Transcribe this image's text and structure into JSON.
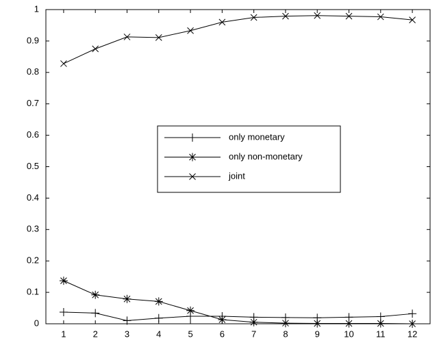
{
  "chart_data": {
    "type": "line",
    "x": [
      1,
      2,
      3,
      4,
      5,
      6,
      7,
      8,
      9,
      10,
      11,
      12
    ],
    "series": [
      {
        "name": "only monetary",
        "color": "#000000",
        "marker": "plus",
        "values": [
          0.037,
          0.034,
          0.01,
          0.018,
          0.024,
          0.024,
          0.021,
          0.02,
          0.019,
          0.021,
          0.023,
          0.032
        ]
      },
      {
        "name": "only non-monetary",
        "color": "#000000",
        "marker": "star",
        "values": [
          0.137,
          0.092,
          0.079,
          0.071,
          0.042,
          0.013,
          0.005,
          0.002,
          0.001,
          0.001,
          0.001,
          0.0
        ]
      },
      {
        "name": "joint",
        "color": "#000000",
        "marker": "x",
        "values": [
          0.828,
          0.875,
          0.913,
          0.911,
          0.933,
          0.96,
          0.975,
          0.979,
          0.981,
          0.979,
          0.977,
          0.967
        ]
      }
    ],
    "xlim": [
      0.44,
      12.56
    ],
    "xticks": [
      1,
      2,
      3,
      4,
      5,
      6,
      7,
      8,
      9,
      10,
      11,
      12
    ],
    "ylim": [
      0,
      1
    ],
    "yticks": [
      0,
      0.1,
      0.2,
      0.3,
      0.4,
      0.5,
      0.6,
      0.7,
      0.8,
      0.9,
      1
    ],
    "grid": false
  }
}
